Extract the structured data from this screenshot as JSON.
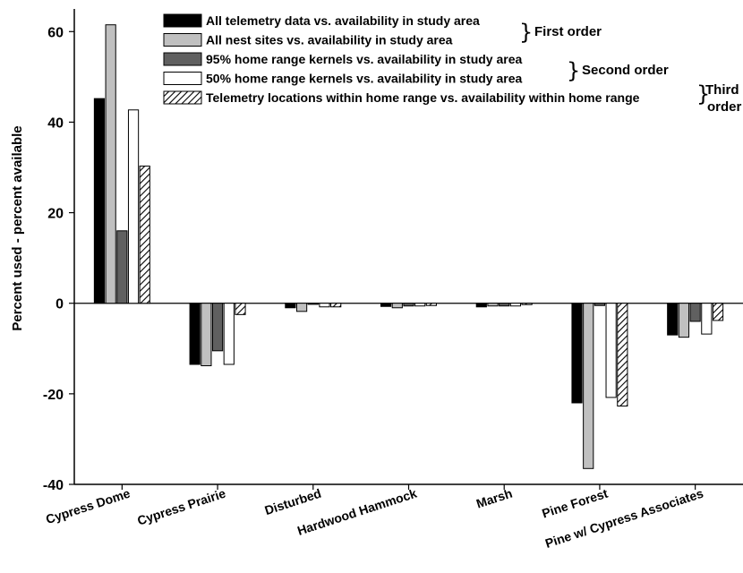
{
  "chart_data": {
    "type": "bar",
    "title": "",
    "xlabel": "",
    "ylabel": "Percent used - percent available",
    "ylim": [
      -40,
      65
    ],
    "yticks": [
      -40,
      -20,
      0,
      20,
      40,
      60
    ],
    "grid": false,
    "legend_position": "top-right",
    "categories": [
      "Cypress Dome",
      "Cypress Prairie",
      "Disturbed",
      "Hardwood Hammock",
      "Marsh",
      "Pine Forest",
      "Pine w/ Cypress Associates"
    ],
    "series": [
      {
        "name": "All telemetry data vs. availability in study area",
        "fill": "#000000",
        "pattern": "solid",
        "values": [
          45.2,
          -13.5,
          -1.0,
          -0.7,
          -0.8,
          -22.0,
          -7.0
        ]
      },
      {
        "name": "All nest sites vs. availability in study area",
        "fill": "#c0c0c0",
        "pattern": "solid",
        "values": [
          61.5,
          -13.8,
          -1.8,
          -1.0,
          -0.6,
          -36.5,
          -7.5
        ]
      },
      {
        "name": "95% home range kernels vs. availability in study area",
        "fill": "#606060",
        "pattern": "solid",
        "values": [
          16.0,
          -10.5,
          0.0,
          -0.6,
          -0.6,
          -0.5,
          -4.0
        ]
      },
      {
        "name": "50% home range kernels vs. availability in study area",
        "fill": "#ffffff",
        "pattern": "solid",
        "values": [
          42.7,
          -13.5,
          -0.8,
          -0.6,
          -0.6,
          -20.8,
          -6.8
        ]
      },
      {
        "name": "Telemetry locations within home range vs. availability within home range",
        "fill": "#ffffff",
        "pattern": "hatch",
        "values": [
          30.3,
          -2.5,
          -0.8,
          -0.5,
          -0.3,
          -22.7,
          -3.8
        ]
      }
    ],
    "annotations": [
      {
        "text": "First order",
        "series": [
          0,
          1
        ]
      },
      {
        "text": "Second order",
        "series": [
          2,
          3
        ]
      },
      {
        "text": "Third order",
        "lines": [
          "Third",
          "order"
        ],
        "series": [
          4
        ]
      }
    ]
  }
}
